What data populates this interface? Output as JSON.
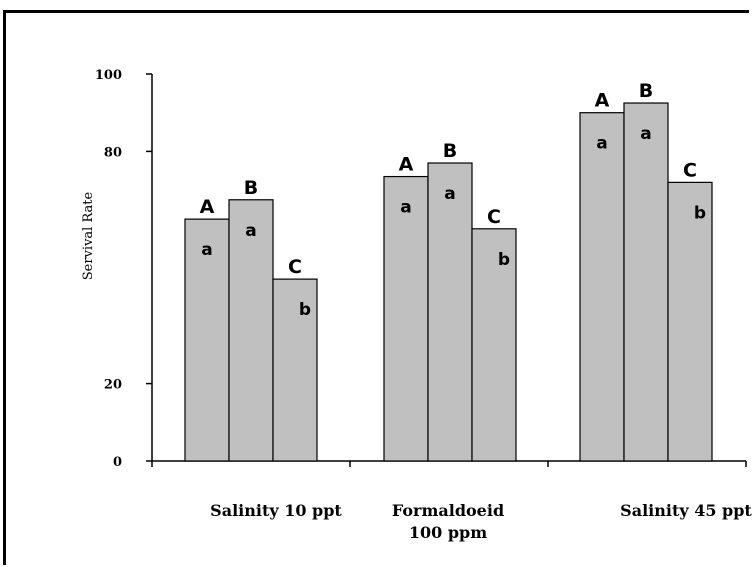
{
  "chart_data": {
    "type": "bar",
    "title": "",
    "xlabel": "",
    "ylabel": "Servival Rate",
    "ylim": [
      0,
      100
    ],
    "yticks": [
      0,
      20,
      80,
      100
    ],
    "grid": false,
    "categories": [
      [
        "Salinity 10 ppt"
      ],
      [
        "Formaldoeid",
        "100 ppm"
      ],
      [
        "Salinity 45 ppt"
      ]
    ],
    "series": [
      {
        "name": "A",
        "values": [
          62.5,
          73.5,
          90
        ]
      },
      {
        "name": "B",
        "values": [
          67.5,
          77,
          92.5
        ]
      },
      {
        "name": "C",
        "values": [
          47,
          60,
          72
        ]
      }
    ],
    "significance": [
      [
        "a",
        "a",
        "b"
      ],
      [
        "a",
        "a",
        "b"
      ],
      [
        "a",
        "a",
        "b"
      ]
    ],
    "bar_color": "#c0c0c0",
    "bar_edge_color": "#000000"
  }
}
